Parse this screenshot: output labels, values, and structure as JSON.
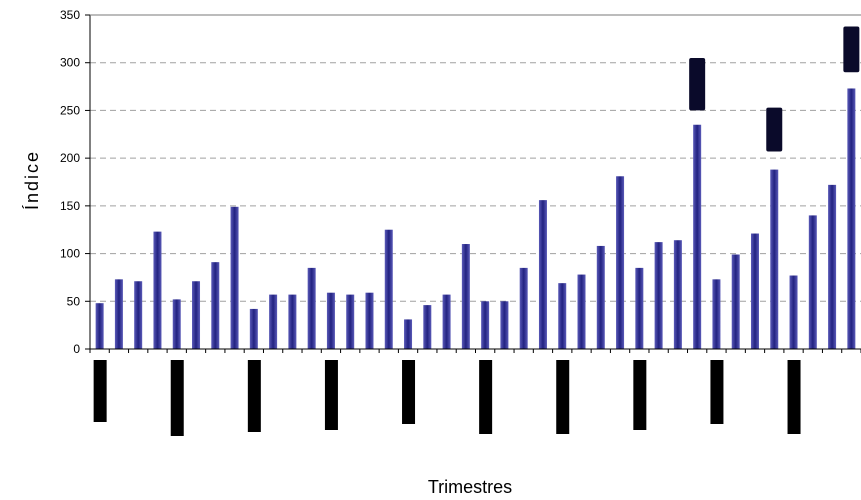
{
  "chart_data": {
    "type": "bar",
    "xlabel": "Trimestres",
    "ylabel": "Índice",
    "ylim": [
      0,
      350
    ],
    "yticks": [
      0,
      50,
      100,
      150,
      200,
      250,
      300,
      350
    ],
    "grid": "horizontal dashed",
    "bar_color": "#3b3b9c",
    "values": [
      48,
      73,
      71,
      123,
      52,
      71,
      91,
      149,
      42,
      57,
      57,
      85,
      59,
      57,
      59,
      125,
      31,
      46,
      57,
      110,
      50,
      50,
      85,
      156,
      69,
      78,
      108,
      181,
      85,
      112,
      114,
      235,
      73,
      99,
      121,
      188,
      77,
      140,
      172,
      273
    ],
    "group_size": 4
  }
}
